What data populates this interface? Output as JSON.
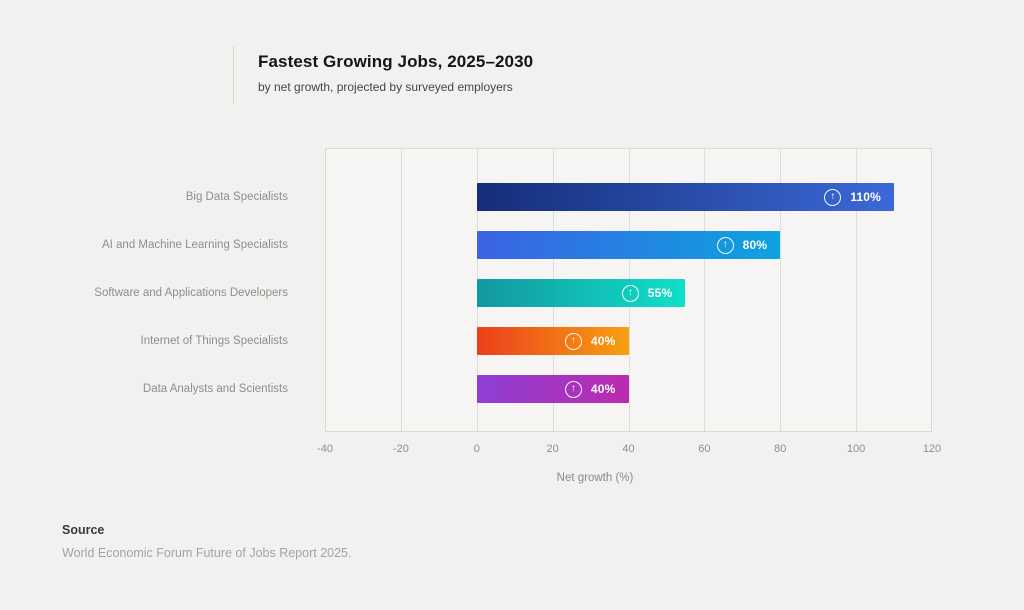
{
  "page": {
    "background": "#f2f1ef"
  },
  "header": {
    "title": "Fastest Growing Jobs, 2025–2030",
    "subtitle": "by net growth, projected by surveyed employers"
  },
  "source": {
    "heading": "Source",
    "text": "World Economic Forum Future of Jobs Report 2025."
  },
  "chart_data": {
    "type": "bar",
    "orientation": "horizontal",
    "title": "Fastest Growing Jobs, 2025–2030",
    "subtitle": "by net growth, projected by surveyed employers",
    "categories": [
      "Big Data Specialists",
      "AI and Machine Learning Specialists",
      "Software and Applications Developers",
      "Internet of Things Specialists",
      "Data Analysts and Scientists"
    ],
    "values": [
      110,
      80,
      55,
      40,
      40
    ],
    "value_labels": [
      "110%",
      "80%",
      "55%",
      "40%",
      "40%"
    ],
    "marker_icon": "up-arrow-circle",
    "marker_glyph": "↑",
    "xlabel": "Net growth (%)",
    "xlim": [
      -40,
      120
    ],
    "xticks": [
      -40,
      -20,
      0,
      20,
      40,
      60,
      80,
      100,
      120
    ],
    "grid": true,
    "legend": "none",
    "bar_gradients": [
      [
        "#142e78",
        "#3c69d8"
      ],
      [
        "#3c63e4",
        "#0ca3df"
      ],
      [
        "#12979f",
        "#10e0c8"
      ],
      [
        "#ec3f1b",
        "#f7a011"
      ],
      [
        "#8d3fd6",
        "#bb2bad"
      ]
    ]
  }
}
